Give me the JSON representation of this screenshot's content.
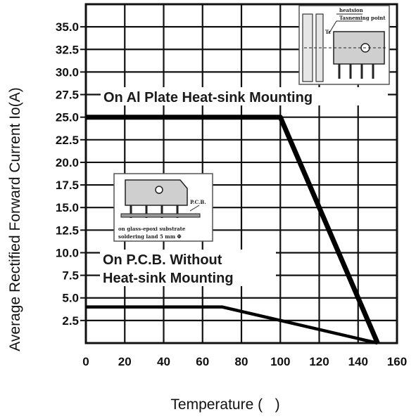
{
  "chart_data": {
    "type": "line",
    "title": "",
    "xlabel": "Temperature (   )",
    "ylabel": "Average Rectified Forward Current Io(A)",
    "xlim": [
      0,
      160
    ],
    "ylim": [
      0,
      37.5
    ],
    "x_ticks": [
      0,
      20,
      40,
      60,
      80,
      100,
      120,
      140,
      160
    ],
    "y_ticks": [
      2.5,
      5.0,
      7.5,
      10.0,
      12.5,
      15.0,
      17.5,
      20.0,
      22.5,
      25.0,
      27.5,
      30.0,
      32.5,
      35.0
    ],
    "y_tick_labels": [
      "2.5",
      "5.0",
      "7.5",
      "10.0",
      "12.5",
      "15.0",
      "17.5",
      "20.0",
      "22.5",
      "25.0",
      "27.5",
      "30.0",
      "32.5",
      "35.0"
    ],
    "grid": true,
    "series": [
      {
        "points": [
          [
            0,
            25
          ],
          [
            100,
            25
          ],
          [
            150,
            0
          ]
        ]
      },
      {
        "points": [
          [
            0,
            4
          ],
          [
            70,
            4
          ],
          [
            150,
            0
          ]
        ]
      }
    ],
    "annotations": [
      {
        "id": "al",
        "text": "On Al Plate Heat-sink Mounting"
      },
      {
        "id": "pcb1",
        "text": "On P.C.B. Without"
      },
      {
        "id": "pcb2",
        "text": "Heat-sink Mounting"
      }
    ],
    "inset_top_labels": [
      "heatsion",
      "Tc",
      "Tasneming point"
    ],
    "inset_pcb_labels": [
      "P.C.B.",
      "on glass-epoxi substrate",
      "soldering land 5 mm Φ"
    ]
  }
}
